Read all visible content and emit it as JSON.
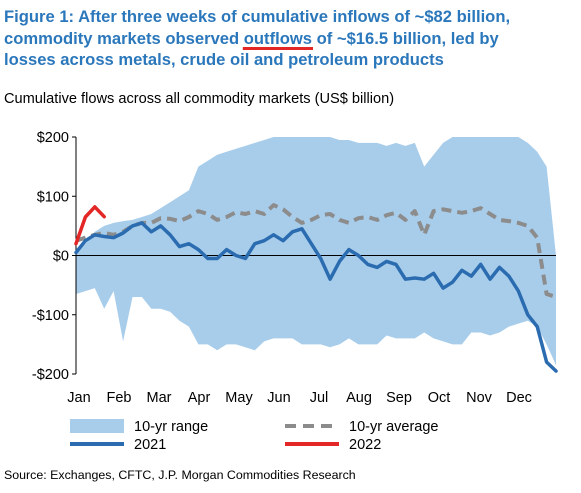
{
  "figure": {
    "title_line1": "Figure 1: After three weeks of cumulative inflows of ~$82 billion,",
    "title_line2_pre": "commodity markets observed ",
    "title_line2_hl": "outflows",
    "title_line2_post": " of ~$16.5 billion, led by",
    "title_line3": "losses across metals, crude oil and petroleum products",
    "subtitle": "Cumulative flows across all commodity markets (US$ billion)",
    "source": "Source: Exchanges, CFTC, J.P. Morgan Commodities Research",
    "colors": {
      "title": "#2b77bb",
      "range_fill": "#a8cdeb",
      "avg_line": "#8c8c8c",
      "line_2021": "#2b6cb0",
      "line_2022": "#e32626",
      "annotation_underline": "#e32626"
    }
  },
  "chart_data": {
    "type": "area",
    "xlabel": "",
    "ylabel": "",
    "ylim": [
      -200,
      200
    ],
    "y_ticks": [
      200,
      100,
      0,
      -100,
      -200
    ],
    "y_tick_labels": [
      "$200",
      "$100",
      "$0",
      "-$100",
      "-$200"
    ],
    "x_months": [
      "Jan",
      "Feb",
      "Mar",
      "Apr",
      "May",
      "Jun",
      "Jul",
      "Aug",
      "Sep",
      "Oct",
      "Nov",
      "Dec"
    ],
    "x_unit": "week of year (1-52)",
    "grid": false,
    "legend_position": "bottom",
    "series": [
      {
        "name": "10-yr range",
        "kind": "band",
        "x": [
          1,
          2,
          3,
          4,
          5,
          6,
          7,
          8,
          9,
          10,
          11,
          12,
          13,
          14,
          15,
          16,
          17,
          18,
          19,
          20,
          21,
          22,
          23,
          24,
          25,
          26,
          27,
          28,
          29,
          30,
          31,
          32,
          33,
          34,
          35,
          36,
          37,
          38,
          39,
          40,
          41,
          42,
          43,
          44,
          45,
          46,
          47,
          48,
          49,
          50,
          51,
          52
        ],
        "upper": [
          10,
          20,
          40,
          50,
          55,
          58,
          60,
          65,
          70,
          80,
          90,
          100,
          110,
          150,
          160,
          170,
          175,
          180,
          185,
          190,
          195,
          200,
          200,
          200,
          200,
          200,
          200,
          200,
          195,
          195,
          190,
          190,
          190,
          185,
          190,
          185,
          190,
          150,
          170,
          190,
          200,
          200,
          200,
          200,
          200,
          200,
          200,
          200,
          190,
          175,
          150,
          0
        ],
        "lower": [
          -65,
          -60,
          -55,
          -90,
          -60,
          -145,
          -70,
          -70,
          -90,
          -90,
          -95,
          -110,
          -120,
          -150,
          -150,
          -160,
          -150,
          -150,
          -155,
          -160,
          -145,
          -140,
          -140,
          -140,
          -150,
          -150,
          -150,
          -155,
          -150,
          -140,
          -150,
          -150,
          -150,
          -135,
          -140,
          -140,
          -140,
          -130,
          -140,
          -145,
          -150,
          -150,
          -130,
          -130,
          -135,
          -130,
          -120,
          -115,
          -110,
          -120,
          -150,
          -185
        ]
      },
      {
        "name": "10-yr average",
        "kind": "dashed-line",
        "x": [
          1,
          2,
          3,
          4,
          5,
          6,
          7,
          8,
          9,
          10,
          11,
          12,
          13,
          14,
          15,
          16,
          17,
          18,
          19,
          20,
          21,
          22,
          23,
          24,
          25,
          26,
          27,
          28,
          29,
          30,
          31,
          32,
          33,
          34,
          35,
          36,
          37,
          38,
          39,
          40,
          41,
          42,
          43,
          44,
          45,
          46,
          47,
          48,
          49,
          50,
          51,
          52
        ],
        "values": [
          25,
          30,
          35,
          38,
          35,
          40,
          50,
          55,
          55,
          63,
          62,
          58,
          65,
          75,
          70,
          60,
          65,
          73,
          70,
          75,
          70,
          85,
          78,
          65,
          55,
          60,
          68,
          70,
          60,
          55,
          63,
          65,
          60,
          68,
          72,
          60,
          75,
          35,
          75,
          78,
          75,
          72,
          75,
          80,
          70,
          60,
          58,
          55,
          50,
          30,
          -65,
          -70
        ]
      },
      {
        "name": "2021",
        "kind": "line",
        "x": [
          1,
          2,
          3,
          4,
          5,
          6,
          7,
          8,
          9,
          10,
          11,
          12,
          13,
          14,
          15,
          16,
          17,
          18,
          19,
          20,
          21,
          22,
          23,
          24,
          25,
          26,
          27,
          28,
          29,
          30,
          31,
          32,
          33,
          34,
          35,
          36,
          37,
          38,
          39,
          40,
          41,
          42,
          43,
          44,
          45,
          46,
          47,
          48,
          49,
          50,
          51,
          52
        ],
        "values": [
          5,
          25,
          35,
          32,
          30,
          38,
          50,
          55,
          40,
          50,
          35,
          15,
          20,
          10,
          -5,
          -5,
          10,
          0,
          -5,
          20,
          25,
          35,
          25,
          40,
          45,
          20,
          -5,
          -40,
          -10,
          10,
          0,
          -15,
          -20,
          -10,
          -15,
          -40,
          -38,
          -40,
          -30,
          -55,
          -45,
          -25,
          -35,
          -15,
          -40,
          -20,
          -35,
          -60,
          -100,
          -120,
          -180,
          -195
        ]
      },
      {
        "name": "2022",
        "kind": "line",
        "x": [
          1,
          2,
          3,
          4
        ],
        "values": [
          20,
          65,
          82,
          65.5
        ]
      }
    ]
  }
}
